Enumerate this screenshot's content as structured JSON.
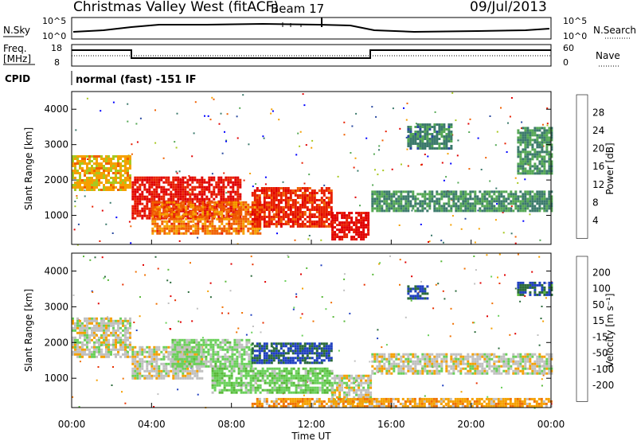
{
  "header": {
    "station": "Christmas Valley West (fitACF)",
    "beam": "Beam 17",
    "date": "09/Jul/2013"
  },
  "top_panels": {
    "nsky_label": "N.Sky",
    "nsearch_label": "N.Search",
    "noise_ticks": [
      "10^5",
      "10^0"
    ],
    "freq_label_1": "Freq.",
    "freq_label_2": "[MHz]",
    "freq_ticks": [
      "18",
      "8"
    ],
    "nave_label": "Nave",
    "nave_ticks": [
      "60",
      "0"
    ],
    "cpid_label": "CPID",
    "cpid_text": "normal (fast) -151 IF"
  },
  "colors": {
    "power_scale": [
      "#0000ff",
      "#2a4aa0",
      "#3c7a6c",
      "#55a855",
      "#a8c820",
      "#f5a000",
      "#f06000",
      "#e82000",
      "#e00000"
    ],
    "velocity_scale": [
      "#2040c0",
      "#2a6a3a",
      "#58b838",
      "#6ad05a",
      "#c0c0c0",
      "#f5a000",
      "#f07000",
      "#e83000",
      "#e00000"
    ]
  },
  "chart_data": [
    {
      "type": "heatmap",
      "title": "",
      "ylabel": "Slant Range [km]",
      "ylim": [
        180,
        4500
      ],
      "yticks": [
        "4000",
        "3000",
        "2000",
        "1000"
      ],
      "xlim": [
        "00:00",
        "24:00"
      ],
      "colorbar": {
        "label": "Power [dB]",
        "ticks": [
          "28",
          "24",
          "20",
          "16",
          "12",
          "8",
          "4"
        ],
        "range": [
          0,
          30
        ]
      },
      "features": [
        {
          "t": [
            0.0,
            2.9
          ],
          "range": [
            1700,
            2700
          ],
          "level": 18
        },
        {
          "t": [
            3.0,
            8.5
          ],
          "range": [
            900,
            2100
          ],
          "level": 27
        },
        {
          "t": [
            4.0,
            9.5
          ],
          "range": [
            500,
            1400
          ],
          "level": 21
        },
        {
          "t": [
            9.0,
            13.0
          ],
          "range": [
            700,
            1800
          ],
          "level": 25
        },
        {
          "t": [
            13.0,
            14.8
          ],
          "range": [
            300,
            1100
          ],
          "level": 28
        },
        {
          "t": [
            15.0,
            24.0
          ],
          "range": [
            1100,
            1700
          ],
          "level": 10
        },
        {
          "t": [
            16.8,
            19.0
          ],
          "range": [
            2900,
            3600
          ],
          "level": 9
        },
        {
          "t": [
            22.3,
            24.0
          ],
          "range": [
            2200,
            3500
          ],
          "level": 10
        }
      ]
    },
    {
      "type": "heatmap",
      "title": "",
      "xlabel": "Time UT",
      "ylabel": "Slant Range [km]",
      "ylim": [
        180,
        4500
      ],
      "yticks": [
        "4000",
        "3000",
        "2000",
        "1000"
      ],
      "xticks": [
        "00:00",
        "04:00",
        "08:00",
        "12:00",
        "16:00",
        "20:00",
        "00:00"
      ],
      "colorbar": {
        "label": "Velocity [m s⁻¹]",
        "ticks": [
          "200",
          "100",
          "50",
          "15",
          "-15",
          "-50",
          "-100",
          "-200"
        ],
        "range": [
          -250,
          250
        ]
      },
      "features": [
        {
          "t": [
            0.0,
            2.9
          ],
          "range": [
            1600,
            2700
          ],
          "level": 0
        },
        {
          "t": [
            3.0,
            6.5
          ],
          "range": [
            1000,
            1900
          ],
          "level": 0
        },
        {
          "t": [
            5.0,
            9.0
          ],
          "range": [
            1300,
            2100
          ],
          "level": -40
        },
        {
          "t": [
            7.0,
            13.0
          ],
          "range": [
            600,
            1300
          ],
          "level": -60
        },
        {
          "t": [
            9.0,
            13.0
          ],
          "range": [
            1400,
            2000
          ],
          "level": -200
        },
        {
          "t": [
            13.0,
            15.0
          ],
          "range": [
            300,
            1100
          ],
          "level": 0
        },
        {
          "t": [
            15.0,
            24.0
          ],
          "range": [
            1100,
            1700
          ],
          "level": 0
        },
        {
          "t": [
            16.8,
            17.8
          ],
          "range": [
            3200,
            3600
          ],
          "level": -200
        },
        {
          "t": [
            22.3,
            24.0
          ],
          "range": [
            3300,
            3700
          ],
          "level": -180
        },
        {
          "t": [
            9.0,
            24.0
          ],
          "range": [
            200,
            450
          ],
          "level": 60
        }
      ]
    }
  ]
}
